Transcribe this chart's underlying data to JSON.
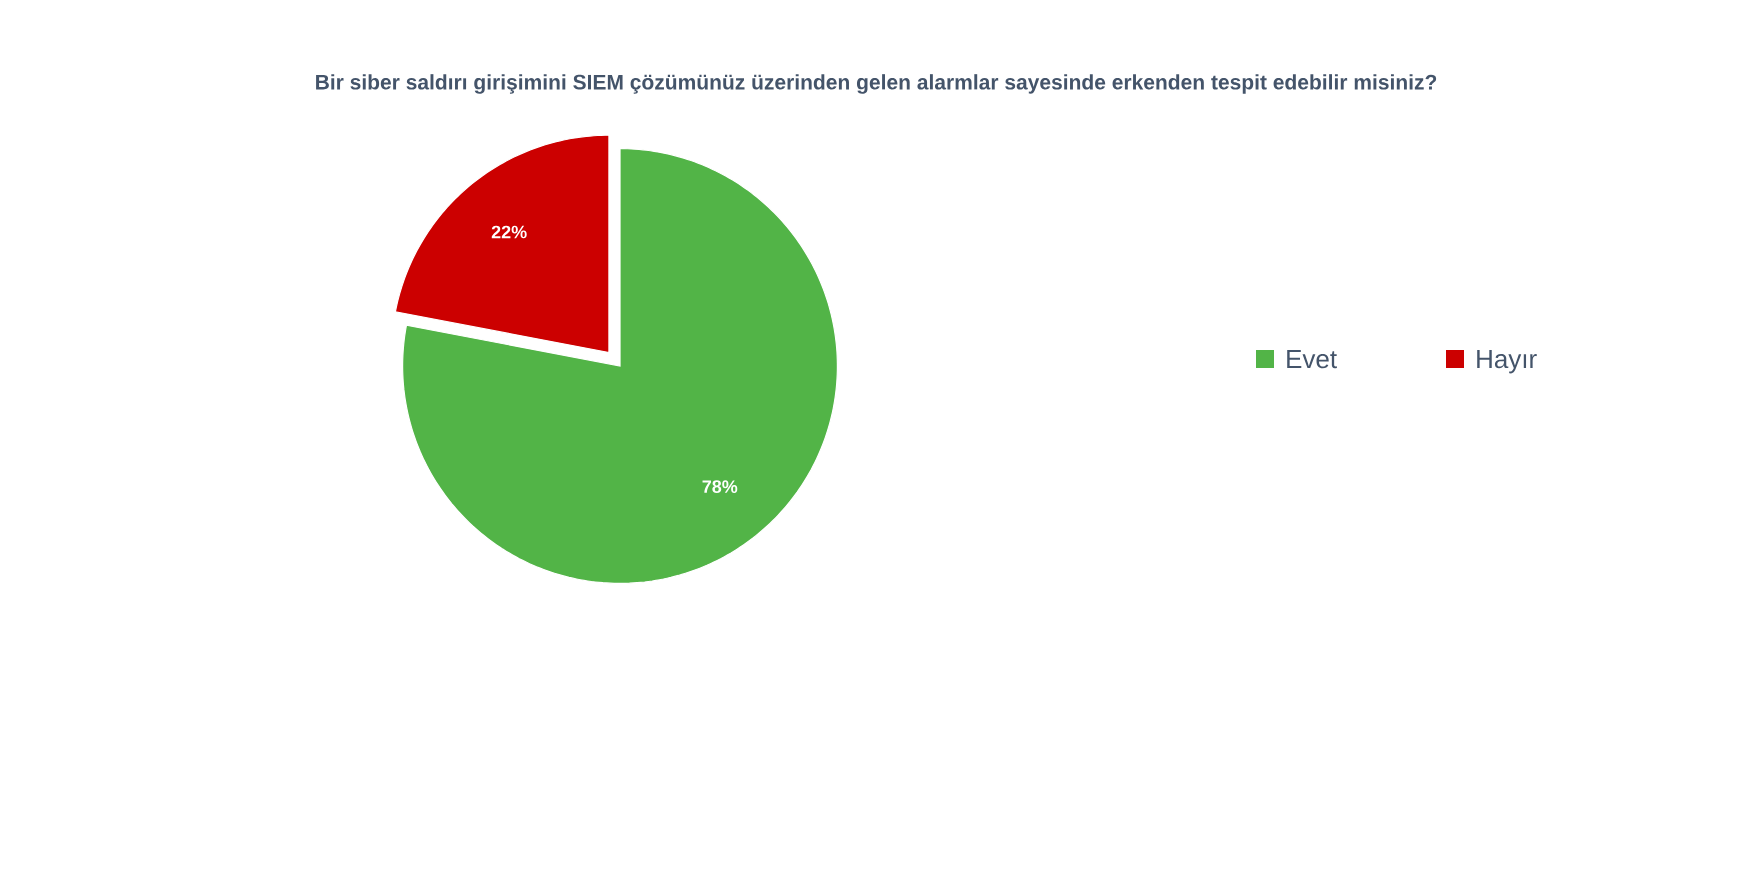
{
  "chart_data": {
    "type": "pie",
    "title": "Bir siber saldırı girişimini SIEM çözümünüz üzerinden gelen alarmlar sayesinde erkenden tespit edebilir misiniz?",
    "categories": [
      "Evet",
      "Hayır"
    ],
    "values": [
      78,
      22
    ],
    "colors": [
      "#52b447",
      "#cc0000"
    ],
    "value_labels": [
      "78%",
      "22%"
    ],
    "legend": "right"
  }
}
